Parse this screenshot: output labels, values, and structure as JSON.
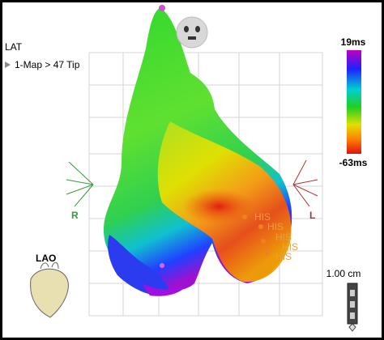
{
  "header": {
    "mode": "LAT",
    "map": "1-Map > 47 Tip"
  },
  "colorbar": {
    "max_label": "19ms",
    "min_label": "-63ms"
  },
  "orientation": {
    "right": "R",
    "left": "L",
    "view": "LAO"
  },
  "his_labels": [
    "HIS",
    "HIS",
    "HIS",
    "HIS",
    "HIS"
  ],
  "scale": {
    "label": "1.00 cm"
  }
}
